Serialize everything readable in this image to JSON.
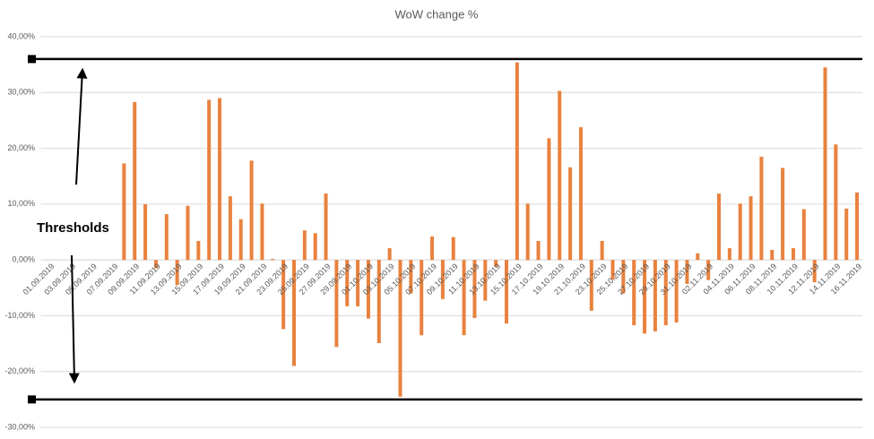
{
  "chart_data": {
    "type": "bar",
    "title": "WoW change %",
    "categories": [
      "01.09.2019",
      null,
      "03.09.2019",
      null,
      "05.09.2019",
      null,
      "07.09.2019",
      null,
      "09.09.2019",
      null,
      "11.09.2019",
      null,
      "13.09.2019",
      null,
      "15.09.2019",
      null,
      "17.09.2019",
      null,
      "19.09.2019",
      null,
      "21.09.2019",
      null,
      "23.09.2019",
      null,
      "25.09.2019",
      null,
      "27.09.2019",
      null,
      "29.09.2019",
      null,
      "01.10.2019",
      null,
      "03.10.2019",
      null,
      "05.10.2019",
      null,
      "07.10.2019",
      null,
      "09.10.2019",
      null,
      "11.10.2019",
      null,
      "13.10.2019",
      null,
      "15.10.2019",
      null,
      "17.10.2019",
      null,
      "19.10.2019",
      null,
      "21.10.2019",
      null,
      "23.10.2019",
      null,
      "25.10.2019",
      null,
      "27.10.2019",
      null,
      "29.10.2019",
      null,
      "31.10.2019",
      null,
      "02.11.2019",
      null,
      "04.11.2019",
      null,
      "06.11.2019",
      null,
      "08.11.2019",
      null,
      "10.11.2019",
      null,
      "12.11.2019",
      null,
      "14.11.2019",
      null,
      "16.11.2019"
    ],
    "values": [
      0,
      0,
      0,
      0,
      0,
      0,
      0,
      17.3,
      28.3,
      10,
      -1.5,
      8.2,
      -4.5,
      9.7,
      3.4,
      28.7,
      29,
      11.4,
      7.3,
      17.8,
      10.1,
      0.2,
      -12.4,
      -19,
      5.3,
      4.8,
      11.9,
      -15.6,
      -8.3,
      -8.3,
      -10.5,
      -14.9,
      2.1,
      -24.5,
      -6,
      -13.5,
      4.2,
      -7,
      4.1,
      -13.5,
      -10.4,
      -7.3,
      -1.2,
      -11.4,
      35.4,
      10.1,
      3.4,
      21.8,
      30.3,
      16.6,
      23.8,
      -9.1,
      3.4,
      -3.5,
      -6,
      -11.7,
      -13.2,
      -12.8,
      -11.7,
      -11.2,
      -4.3,
      1.2,
      -3.6,
      11.9,
      2.1,
      10.1,
      11.4,
      18.5,
      1.8,
      16.5,
      2.1,
      9.1,
      -4,
      34.5,
      20.7,
      9.2,
      12.1
    ],
    "color": "#e8823e",
    "ylim": [
      -30,
      40
    ],
    "yticks": [
      {
        "value": -30,
        "label": "-30,00%"
      },
      {
        "value": -20,
        "label": "-20,00%"
      },
      {
        "value": -10,
        "label": "-10,00%"
      },
      {
        "value": 0,
        "label": "0,00%"
      },
      {
        "value": 10,
        "label": "10,00%"
      },
      {
        "value": 20,
        "label": "20,00%"
      },
      {
        "value": 30,
        "label": "30,00%"
      },
      {
        "value": 40,
        "label": "40,00%"
      }
    ],
    "grid": true,
    "thresholds": [
      36,
      -25
    ],
    "annotation": "Thresholds"
  }
}
